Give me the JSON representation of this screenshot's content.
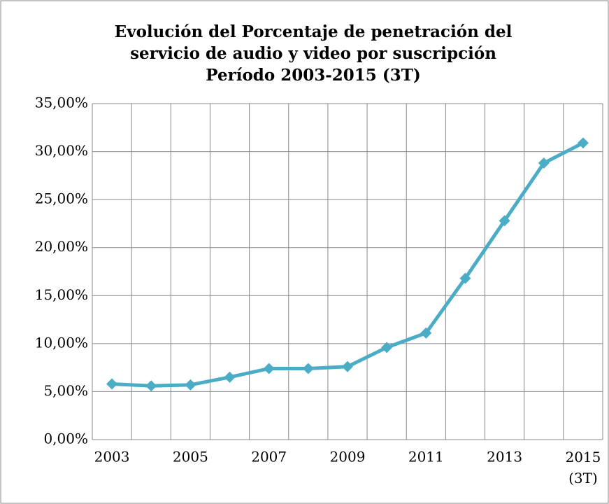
{
  "chart_data": {
    "type": "line",
    "title": [
      "Evolución del Porcentaje de penetración del",
      "servicio de audio y video por suscripción",
      "Período 2003-2015 (3T)"
    ],
    "categories": [
      "2003",
      null,
      "2005",
      null,
      "2007",
      null,
      "2009",
      null,
      "2011",
      null,
      "2013",
      null,
      "2015\n(3T)"
    ],
    "values": [
      5.8,
      5.6,
      5.7,
      6.5,
      7.4,
      7.4,
      7.6,
      9.6,
      11.1,
      16.8,
      22.8,
      28.8,
      30.9
    ],
    "color": "#4bacc6",
    "ylim": [
      0,
      35
    ],
    "yticks": [
      {
        "value": 0,
        "label": "0,00%"
      },
      {
        "value": 5,
        "label": "5,00%"
      },
      {
        "value": 10,
        "label": "10,00%"
      },
      {
        "value": 15,
        "label": "15,00%"
      },
      {
        "value": 20,
        "label": "20,00%"
      },
      {
        "value": 25,
        "label": "25,00%"
      },
      {
        "value": 30,
        "label": "30,00%"
      },
      {
        "value": 35,
        "label": "35,00%"
      }
    ],
    "grid": true
  }
}
